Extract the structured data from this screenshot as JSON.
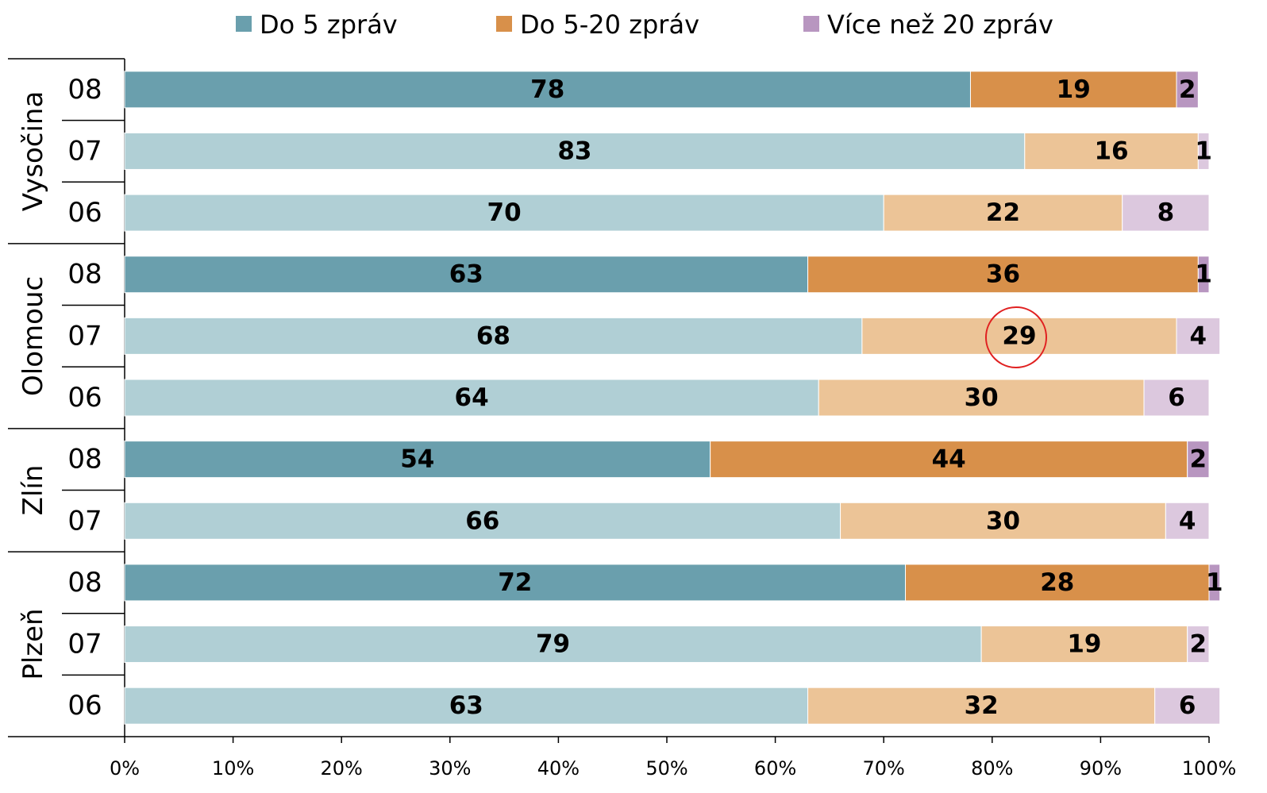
{
  "chart_data": {
    "type": "stacked-bar-horizontal",
    "groups": [
      {
        "name": "Vysočina",
        "categories": [
          "08",
          "07",
          "06"
        ]
      },
      {
        "name": "Olomouc",
        "categories": [
          "08",
          "07",
          "06"
        ]
      },
      {
        "name": "Zlín",
        "categories": [
          "08",
          "07"
        ]
      },
      {
        "name": "Plzeň",
        "categories": [
          "08",
          "07",
          "06"
        ]
      }
    ],
    "series": [
      {
        "name": "Do 5 zpráv",
        "color": "#6a9fad",
        "colors": [
          "#6a9fad",
          "#b0cfd5",
          "#b0cfd5",
          "#6a9fad",
          "#b0cfd5",
          "#b0cfd5",
          "#6a9fad",
          "#b0cfd5",
          "#6a9fad",
          "#b0cfd5",
          "#b0cfd5"
        ],
        "values": [
          78,
          83,
          70,
          63,
          68,
          64,
          54,
          66,
          72,
          79,
          63
        ]
      },
      {
        "name": "Do 5-20 zpráv",
        "color": "#d8904a",
        "colors": [
          "#d8904a",
          "#ecc497",
          "#ecc497",
          "#d8904a",
          "#ecc497",
          "#ecc497",
          "#d8904a",
          "#ecc497",
          "#d8904a",
          "#ecc497",
          "#ecc497"
        ],
        "values": [
          19,
          16,
          22,
          36,
          29,
          30,
          44,
          30,
          28,
          19,
          32
        ]
      },
      {
        "name": "Více než 20 zpráv",
        "color": "#b896c0",
        "colors": [
          "#b896c0",
          "#dcc8de",
          "#dcc8de",
          "#b896c0",
          "#dcc8de",
          "#dcc8de",
          "#b896c0",
          "#dcc8de",
          "#b896c0",
          "#dcc8de",
          "#dcc8de"
        ],
        "values": [
          2,
          1,
          8,
          1,
          4,
          6,
          2,
          4,
          1,
          2,
          6
        ]
      }
    ],
    "xlim": [
      0,
      100
    ],
    "xticks": [
      {
        "value": 0,
        "label": "0%"
      },
      {
        "value": 10,
        "label": "10%"
      },
      {
        "value": 20,
        "label": "20%"
      },
      {
        "value": 30,
        "label": "30%"
      },
      {
        "value": 40,
        "label": "40%"
      },
      {
        "value": 50,
        "label": "50%"
      },
      {
        "value": 60,
        "label": "60%"
      },
      {
        "value": 70,
        "label": "70%"
      },
      {
        "value": 80,
        "label": "80%"
      },
      {
        "value": 90,
        "label": "90%"
      },
      {
        "value": 100,
        "label": "100%"
      }
    ],
    "legend": "top"
  }
}
